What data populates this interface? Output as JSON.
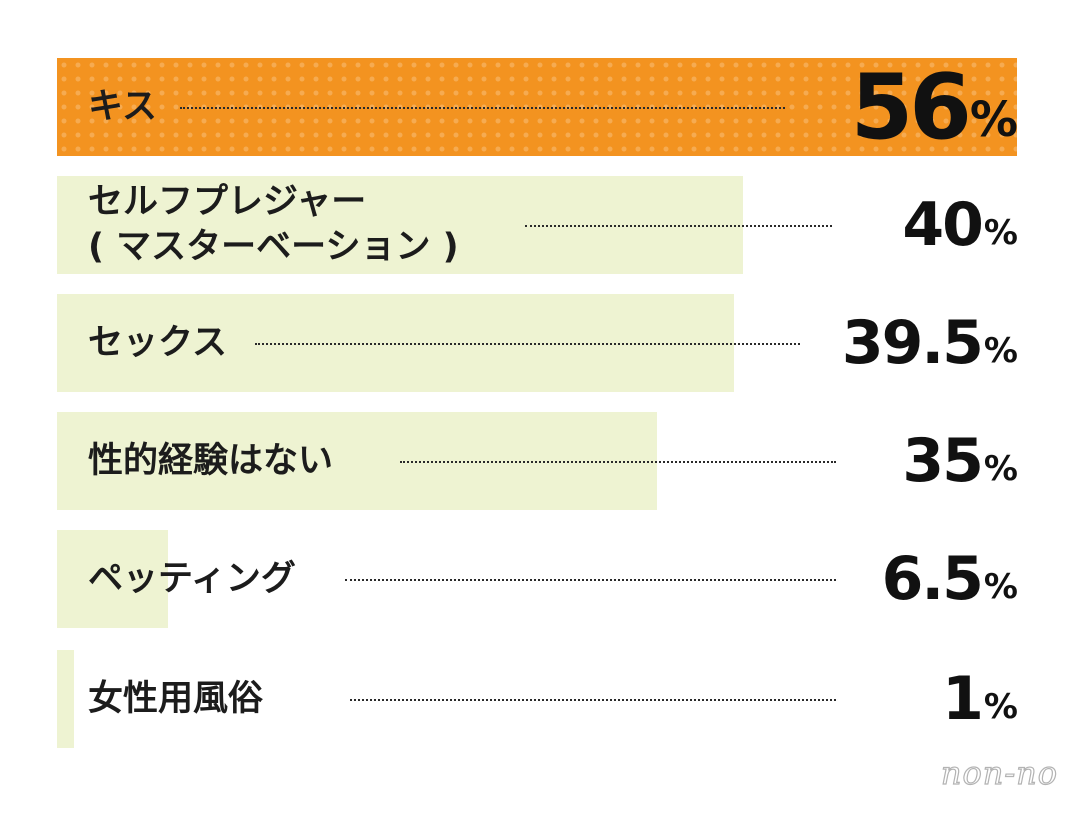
{
  "chart_data": {
    "type": "bar",
    "orientation": "horizontal",
    "categories": [
      "キス",
      "セルフプレジャー\n( マスターベーション )",
      "セックス",
      "性的経験はない",
      "ペッティング",
      "女性用風俗"
    ],
    "values": [
      56,
      40,
      39.5,
      35,
      6.5,
      1
    ],
    "value_labels": [
      "56",
      "40",
      "39.5",
      "35",
      "6.5",
      "1"
    ],
    "unit": "%",
    "xlim": [
      0,
      56
    ],
    "colors": {
      "highlight": "#f39320",
      "bar": "#eef3d2",
      "text": "#1c1c1c"
    },
    "grid": false,
    "legend": "none"
  },
  "logo": {
    "text": "non-no"
  }
}
